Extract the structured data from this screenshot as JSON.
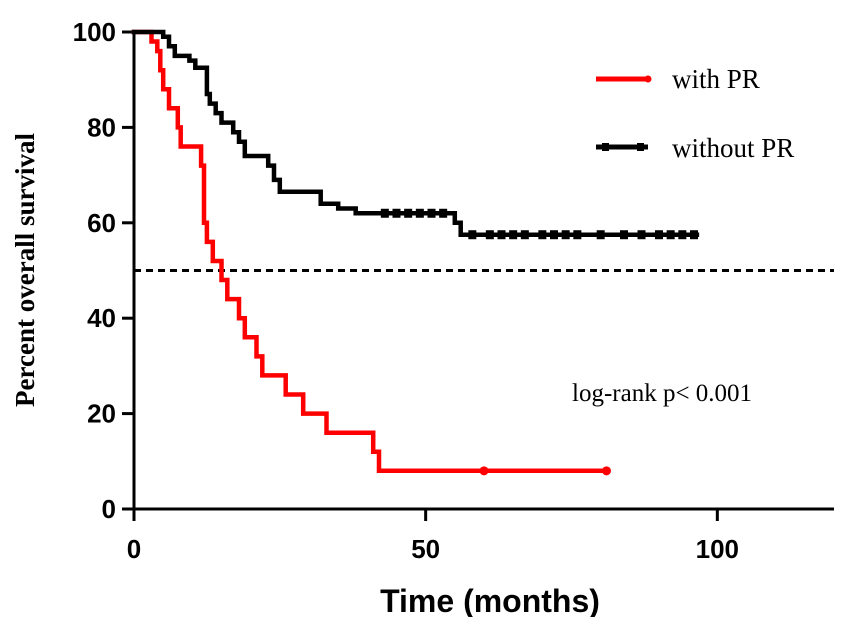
{
  "chart_data": {
    "type": "line",
    "step": true,
    "xlabel": "Time (months)",
    "ylabel": "Percent overall survival",
    "xlim": [
      0,
      120
    ],
    "ylim": [
      0,
      100
    ],
    "xticks": [
      "0",
      "50",
      "100"
    ],
    "yticks": [
      "0",
      "20",
      "40",
      "60",
      "80",
      "100"
    ],
    "grid": false,
    "legend_position": "top-right",
    "reference_line": {
      "y": 50,
      "style": "dashed"
    },
    "annotation": "log-rank p< 0.001",
    "series": [
      {
        "name": "with PR",
        "color": "#ff0000",
        "marker": "circle",
        "points": [
          [
            0,
            100
          ],
          [
            3,
            100
          ],
          [
            3,
            98
          ],
          [
            4,
            96
          ],
          [
            4.5,
            92
          ],
          [
            5,
            88
          ],
          [
            6,
            84
          ],
          [
            7.5,
            80
          ],
          [
            8,
            76
          ],
          [
            11.5,
            72
          ],
          [
            12,
            60
          ],
          [
            12.5,
            56
          ],
          [
            13.5,
            52
          ],
          [
            15,
            48
          ],
          [
            16,
            44
          ],
          [
            18,
            40
          ],
          [
            19,
            36
          ],
          [
            21,
            32
          ],
          [
            22,
            28
          ],
          [
            26,
            24
          ],
          [
            29,
            20
          ],
          [
            33,
            16
          ],
          [
            41,
            12
          ],
          [
            42,
            8
          ],
          [
            81,
            8
          ]
        ],
        "censor_marks": [
          60,
          81
        ]
      },
      {
        "name": "without PR",
        "color": "#000000",
        "marker": "square",
        "points": [
          [
            0,
            100
          ],
          [
            4.5,
            100
          ],
          [
            5,
            99
          ],
          [
            6,
            97
          ],
          [
            7,
            95
          ],
          [
            9.5,
            94
          ],
          [
            10.5,
            92.5
          ],
          [
            12,
            92.5
          ],
          [
            12.5,
            87
          ],
          [
            13,
            85
          ],
          [
            14,
            83
          ],
          [
            15,
            81
          ],
          [
            17,
            79
          ],
          [
            18,
            77
          ],
          [
            19,
            74
          ],
          [
            23,
            72
          ],
          [
            24,
            69
          ],
          [
            25,
            66.5
          ],
          [
            32,
            64
          ],
          [
            35,
            63
          ],
          [
            38,
            62
          ],
          [
            55,
            60
          ],
          [
            56,
            57.5
          ],
          [
            96.5,
            57.5
          ]
        ],
        "censor_marks": [
          43,
          45,
          47,
          49,
          51,
          53,
          58,
          61,
          63,
          65,
          67,
          70,
          72,
          74,
          76,
          80,
          84,
          87,
          90,
          92,
          94,
          96
        ]
      }
    ]
  }
}
